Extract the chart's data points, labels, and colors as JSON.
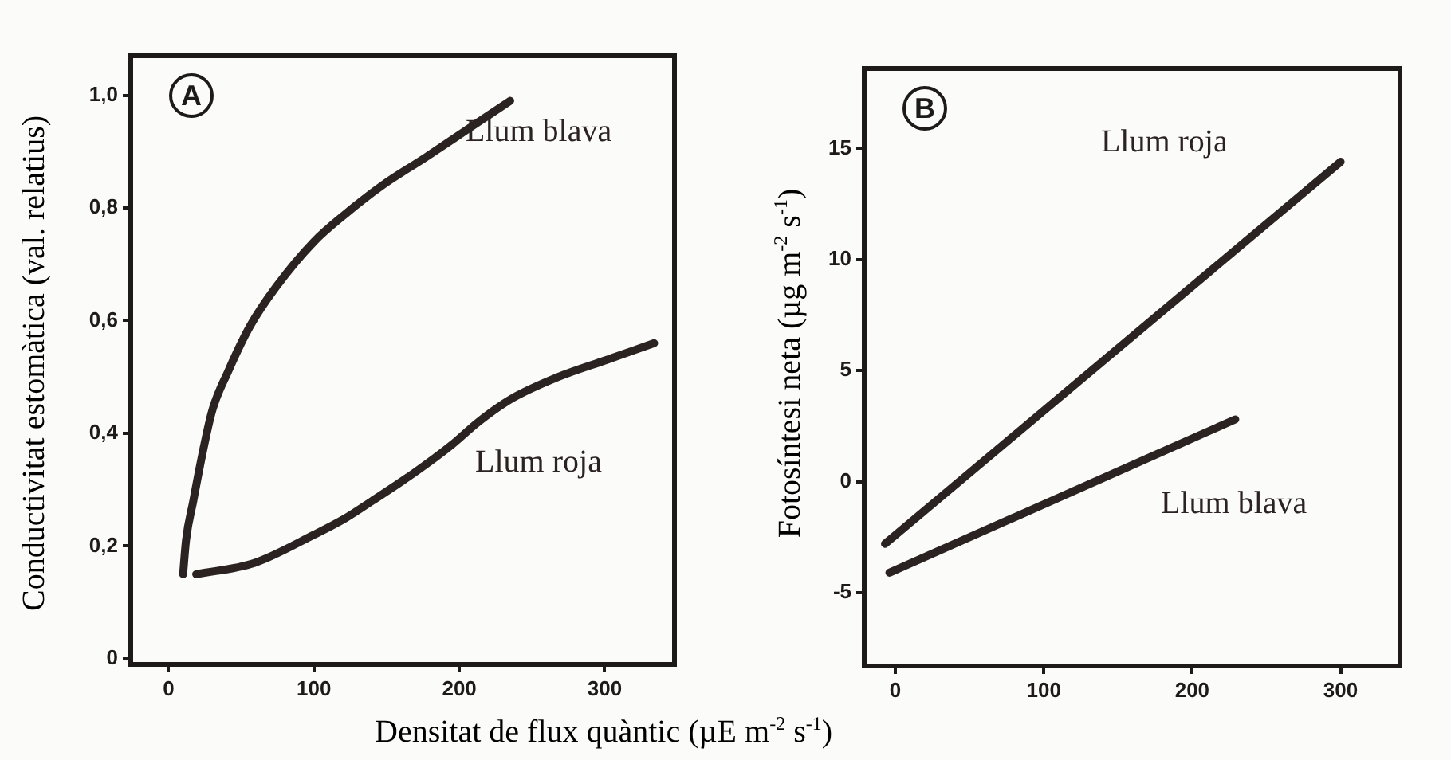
{
  "chart_data": [
    {
      "type": "line",
      "title": "A",
      "ylabel": "Conductivitat estomàtica (val. relatius)",
      "xlabel": "Densitat de flux quàntic (µE m$^{-2}$ s$^{-1}$)",
      "xlim": [
        -26,
        348
      ],
      "xticks": [
        0,
        100,
        200,
        300
      ],
      "ylim": [
        -0.01,
        1.07
      ],
      "yticks": [
        {
          "value": 0,
          "label": "0"
        },
        {
          "value": 0.2,
          "label": "0,2"
        },
        {
          "value": 0.4,
          "label": "0,4"
        },
        {
          "value": 0.6,
          "label": "0,6"
        },
        {
          "value": 0.8,
          "label": "0,8"
        },
        {
          "value": 1.0,
          "label": "1,0"
        }
      ],
      "series": [
        {
          "name": "Llum blava",
          "color": "#2b2222",
          "x": [
            10,
            12,
            17,
            23,
            30,
            41,
            56,
            74,
            100,
            122,
            147,
            177,
            206,
            235
          ],
          "values": [
            0.15,
            0.21,
            0.28,
            0.36,
            0.44,
            0.51,
            0.59,
            0.66,
            0.74,
            0.79,
            0.84,
            0.89,
            0.94,
            0.99
          ]
        },
        {
          "name": "Llum roja",
          "color": "#2b2222",
          "x": [
            19,
            59,
            100,
            122,
            140,
            169,
            195,
            213,
            235,
            268,
            301,
            334
          ],
          "values": [
            0.15,
            0.17,
            0.22,
            0.25,
            0.28,
            0.33,
            0.38,
            0.42,
            0.46,
            0.5,
            0.53,
            0.56
          ]
        }
      ]
    },
    {
      "type": "line",
      "title": "B",
      "ylabel": "Fotosíntesi neta (µg m$^{-2}$ s$^{-1}$)",
      "xlim": [
        -21,
        340
      ],
      "xticks": [
        0,
        100,
        200,
        300
      ],
      "ylim": [
        -8.3,
        18.6
      ],
      "yticks": [
        -5,
        0,
        5,
        10,
        15
      ],
      "series": [
        {
          "name": "Llum roja",
          "color": "#2b2222",
          "x": [
            -7,
            300
          ],
          "values": [
            -2.8,
            14.4
          ]
        },
        {
          "name": "Llum blava",
          "color": "#2b2222",
          "x": [
            -4,
            229
          ],
          "values": [
            -4.1,
            2.8
          ]
        }
      ]
    }
  ]
}
